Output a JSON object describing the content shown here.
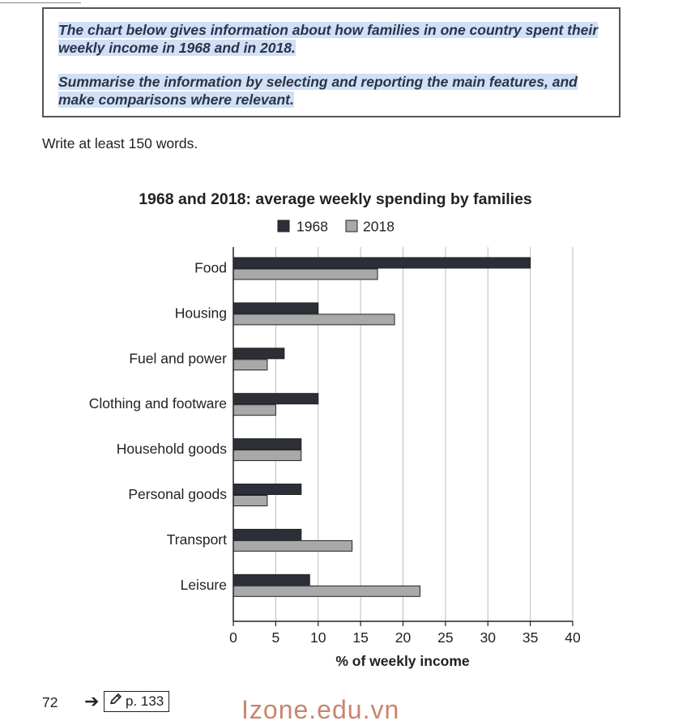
{
  "task": {
    "para1": "The chart below gives information about how families in one country spent their weekly income in 1968 and in 2018.",
    "para2": "Summarise the information by selecting and reporting the main features, and make comparisons where relevant."
  },
  "instruction": "Write at least 150 words.",
  "footer": {
    "page_number": "72",
    "arrow": "➔",
    "page_ref": "p. 133",
    "watermark": "Izone.edu.vn"
  },
  "colors": {
    "series_1968": "#2c2f38",
    "series_2018": "#a9a9a9",
    "grid": "#bdbdbd",
    "highlight": "#cfe0f7",
    "task_text": "#2b3347"
  },
  "icons": {
    "arrow": "right-arrow-icon",
    "pencil": "pencil-icon"
  },
  "chart_data": {
    "type": "bar",
    "orientation": "horizontal",
    "title": "1968 and 2018: average weekly spending by families",
    "xlabel": "% of weekly income",
    "ylabel": "",
    "categories": [
      "Food",
      "Housing",
      "Fuel and power",
      "Clothing and footware",
      "Household goods",
      "Personal goods",
      "Transport",
      "Leisure"
    ],
    "series": [
      {
        "name": "1968",
        "values": [
          35,
          10,
          6,
          10,
          8,
          8,
          8,
          9
        ]
      },
      {
        "name": "2018",
        "values": [
          17,
          19,
          4,
          5,
          8,
          4,
          14,
          22
        ]
      }
    ],
    "xlim": [
      0,
      40
    ],
    "xticks": [
      0,
      5,
      10,
      15,
      20,
      25,
      30,
      35,
      40
    ],
    "grid": "vertical",
    "legend": "top-center"
  }
}
